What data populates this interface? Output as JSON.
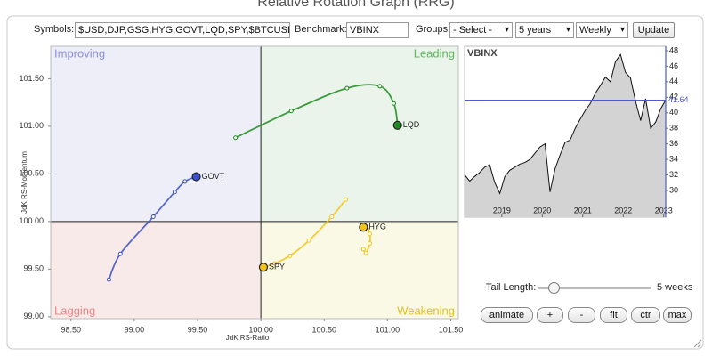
{
  "title": "Relative Rotation Graph (RRG)",
  "controls": {
    "symbols_label": "Symbols:",
    "symbols": "$USD,DJP,GSG,HYG,GOVT,LQD,SPY,$BTCUSD",
    "benchmark_label": "Benchmark:",
    "benchmark": "VBINX",
    "groups_label": "Groups:",
    "groups": "- Select -",
    "period": "5 years",
    "frequency": "Weekly",
    "update": "Update"
  },
  "chart_data": [
    {
      "type": "rrg",
      "x_label": "JdK RS-Ratio",
      "y_label": "JdK RS-Momentum",
      "center": 100,
      "quadrants": [
        {
          "name": "Improving",
          "color": "#8b8de0",
          "fill": "#eeeef9"
        },
        {
          "name": "Leading",
          "color": "#5cb85c",
          "fill": "#eaf4ea"
        },
        {
          "name": "Lagging",
          "color": "#ef8585",
          "fill": "#f9eaea"
        },
        {
          "name": "Weakening",
          "color": "#e2c21e",
          "fill": "#f9f9e6"
        }
      ],
      "xlim": [
        98.34,
        101.56
      ],
      "ylim": [
        98.98,
        101.84
      ],
      "xticks": [
        {
          "value": 98.5,
          "label": "98.50"
        },
        {
          "value": 99,
          "label": "99.00"
        },
        {
          "value": 99.5,
          "label": "99.50"
        },
        {
          "value": 100,
          "label": "100.00"
        },
        {
          "value": 100.5,
          "label": "100.50"
        },
        {
          "value": 101,
          "label": "101.00"
        },
        {
          "value": 101.5,
          "label": "101.50"
        }
      ],
      "yticks": [
        {
          "value": 99,
          "label": "99.00"
        },
        {
          "value": 99.5,
          "label": "99.50"
        },
        {
          "value": 100,
          "label": "100.00"
        },
        {
          "value": 100.5,
          "label": "100.50"
        },
        {
          "value": 101,
          "label": "101.00"
        },
        {
          "value": 101.5,
          "label": "101.50"
        }
      ],
      "series": [
        {
          "name": "LQD",
          "color": "#1e8c1e",
          "x": [
            99.8,
            100.24,
            100.68,
            100.94,
            101.05,
            101.08
          ],
          "y": [
            100.88,
            101.16,
            101.4,
            101.42,
            101.24,
            101.01
          ]
        },
        {
          "name": "GOVT",
          "color": "#3b50c4",
          "x": [
            98.8,
            98.89,
            99.15,
            99.32,
            99.4,
            99.49
          ],
          "y": [
            99.39,
            99.66,
            100.05,
            100.31,
            100.42,
            100.47
          ]
        },
        {
          "name": "HYG",
          "color": "#f2c417",
          "x": [
            100.81,
            100.83,
            100.86,
            100.86,
            100.84,
            100.81
          ],
          "y": [
            99.71,
            99.67,
            99.77,
            99.87,
            99.92,
            99.94
          ]
        },
        {
          "name": "SPY",
          "color": "#f2c417",
          "x": [
            100.67,
            100.56,
            100.38,
            100.23,
            100.11,
            100.02
          ],
          "y": [
            100.23,
            100.05,
            99.8,
            99.64,
            99.56,
            99.52
          ]
        }
      ]
    },
    {
      "type": "area",
      "name": "VBINX",
      "color": "#111111",
      "fill": "#d3d3d3",
      "marker_color": "#4a5bd6",
      "xlim": [
        2018.08,
        2023.05
      ],
      "ylim": [
        28.16,
        48.57
      ],
      "xticks": [
        2019,
        2020,
        2021,
        2022,
        2023
      ],
      "yticks": [
        30,
        32,
        34,
        36,
        38,
        40,
        42,
        44,
        46,
        48
      ],
      "values": [
        32.0,
        31.2,
        31.8,
        32.3,
        33.0,
        33.3,
        31.0,
        29.6,
        31.8,
        32.6,
        33.0,
        33.4,
        33.6,
        34.0,
        34.8,
        35.6,
        36.0,
        29.8,
        32.8,
        34.6,
        36.2,
        36.5,
        38.0,
        39.2,
        40.3,
        41.2,
        42.5,
        43.5,
        44.6,
        44.0,
        46.6,
        47.5,
        45.2,
        44.5,
        41.5,
        39.0,
        41.8,
        38.0,
        38.8,
        40.5,
        41.64
      ]
    }
  ],
  "tail": {
    "label": "Tail Length:",
    "value": "5 weeks"
  },
  "buttons": [
    "animate",
    "+",
    "-",
    "fit",
    "ctr",
    "max"
  ]
}
